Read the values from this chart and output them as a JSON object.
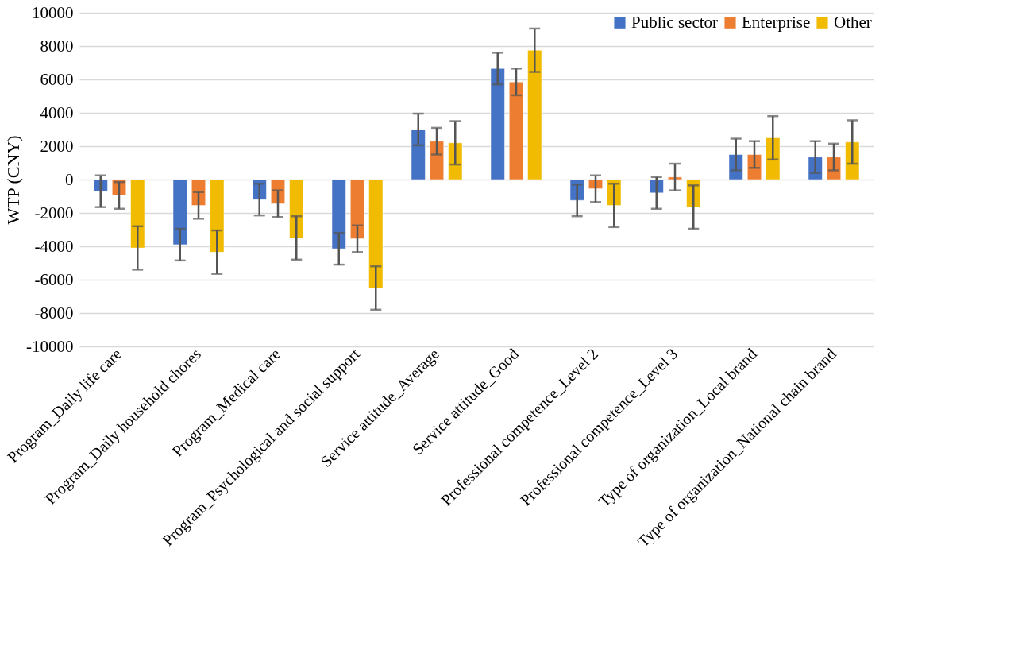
{
  "chart_data": {
    "type": "bar",
    "ylabel": "WTP (CNY)",
    "categories": [
      "Program_Daily life care",
      "Program_Daily household chores",
      "Program_Medical care",
      "Program_Psychological and social support",
      "Service attitude_Average",
      "Service attitude_Good",
      "Professional competence_Level 2",
      "Professional competence_Level 3",
      "Type of   organization_Local brand",
      "Type of   organization_National chain brand"
    ],
    "series": [
      {
        "name": "Public sector",
        "color": "#4472c4",
        "values": [
          -700,
          -3900,
          -1200,
          -4150,
          3000,
          6650,
          -1250,
          -800,
          1500,
          1350
        ],
        "errors": [
          950,
          950,
          950,
          950,
          950,
          950,
          950,
          950,
          950,
          950
        ]
      },
      {
        "name": "Enterprise",
        "color": "#ed7d31",
        "values": [
          -950,
          -1550,
          -1450,
          -3550,
          2300,
          5850,
          -550,
          150,
          1500,
          1350
        ],
        "errors": [
          800,
          800,
          800,
          800,
          800,
          800,
          800,
          800,
          800,
          800
        ]
      },
      {
        "name": "Other",
        "color": "#f0bb00",
        "values": [
          -4100,
          -4350,
          -3500,
          -6500,
          2200,
          7750,
          -1550,
          -1650,
          2500,
          2250
        ],
        "errors": [
          1300,
          1300,
          1300,
          1300,
          1300,
          1300,
          1300,
          1300,
          1300,
          1300
        ]
      }
    ],
    "ylim": [
      -10000,
      10000
    ],
    "yticks": [
      -10000,
      -8000,
      -6000,
      -4000,
      -2000,
      0,
      2000,
      4000,
      6000,
      8000,
      10000
    ],
    "grid": "y",
    "legend": "top right"
  }
}
